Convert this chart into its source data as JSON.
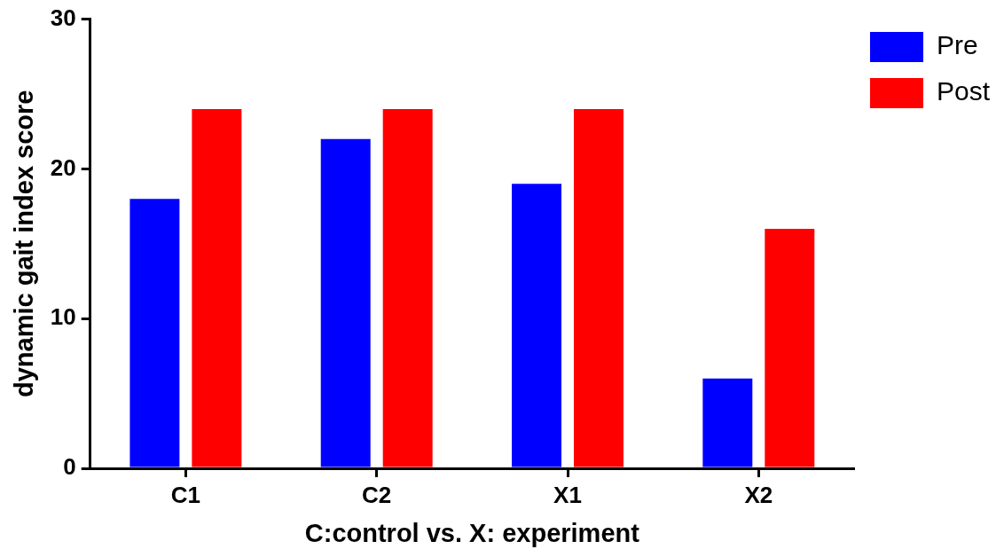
{
  "chart_data": {
    "type": "bar",
    "xlabel": "C:control vs. X: experiment",
    "ylabel": "dynamic gait index score",
    "categories": [
      "C1",
      "C2",
      "X1",
      "X2"
    ],
    "series": [
      {
        "name": "Pre",
        "color": "#0000ff",
        "values": [
          18,
          22,
          19,
          6
        ]
      },
      {
        "name": "Post",
        "color": "#ff0000",
        "values": [
          24,
          24,
          24,
          16
        ]
      }
    ],
    "ylim": [
      0,
      30
    ],
    "yticks": [
      0,
      10,
      20,
      30
    ],
    "grid": false,
    "legend": "top right"
  }
}
